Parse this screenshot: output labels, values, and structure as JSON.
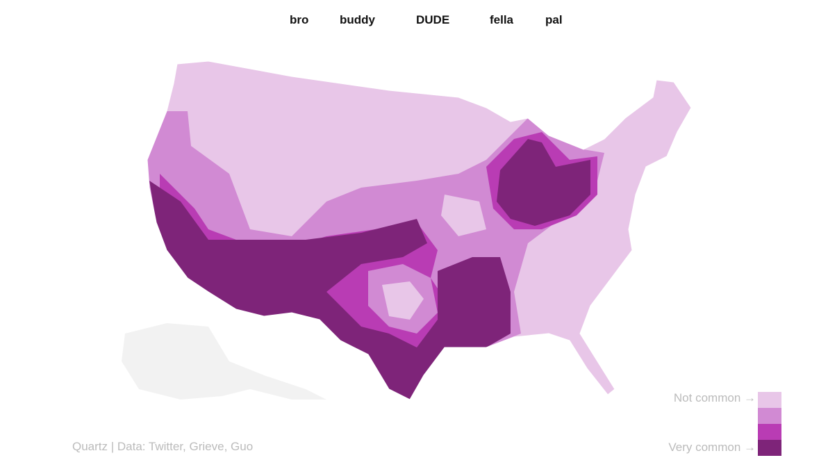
{
  "tabs": [
    "bro",
    "buddy",
    "DUDE",
    "fella",
    "pal"
  ],
  "legend": {
    "low_label": "Not common →",
    "high_label": "Very common →",
    "colors": [
      "#e8c6e8",
      "#d18ad3",
      "#b93cb4",
      "#7e2479"
    ]
  },
  "source": "Quartz | Data: Twitter, Grieve, Guo"
}
